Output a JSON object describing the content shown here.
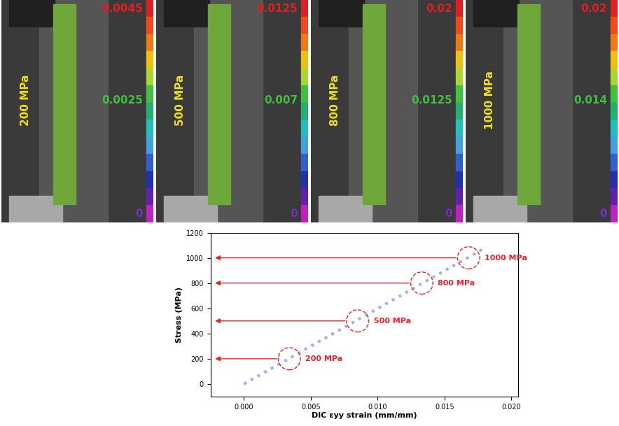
{
  "panels": [
    {
      "stress_label": "200 MPa",
      "scale_max": 0.0045,
      "scale_mid": 0.0025,
      "scale_min": 0
    },
    {
      "stress_label": "500 MPa",
      "scale_max": 0.0125,
      "scale_mid": 0.007,
      "scale_min": 0
    },
    {
      "stress_label": "800 MPa",
      "scale_max": 0.02,
      "scale_mid": 0.0125,
      "scale_min": 0
    },
    {
      "stress_label": "1000 MPa",
      "scale_max": 0.02,
      "scale_mid": 0.014,
      "scale_min": 0
    }
  ],
  "chart_data": {
    "type": "scatter",
    "x_label": "DIC εyy strain (mm/mm)",
    "y_label": "Stress (MPa)",
    "xlim": [
      -0.0025,
      0.0205
    ],
    "ylim": [
      -100,
      1200
    ],
    "xticks": [
      {
        "value": 0,
        "label": "0.000"
      },
      {
        "value": 0.005,
        "label": "0.005"
      },
      {
        "value": 0.01,
        "label": "0.010"
      },
      {
        "value": 0.015,
        "label": "0.015"
      },
      {
        "value": 0.02,
        "label": "0.020"
      }
    ],
    "yticks": [
      0,
      200,
      400,
      600,
      800,
      1000,
      1200
    ],
    "data_labels": true,
    "series": [
      {
        "type": "line",
        "color": "#a8b0ec",
        "line_style": "dotted",
        "x": [
          0,
          0.0178
        ],
        "values": [
          0,
          1065
        ]
      },
      {
        "type": "scatter",
        "color": "#e8202a",
        "marker": "circle",
        "x": [
          0.0034,
          0.0085,
          0.0133,
          0.0168
        ],
        "values": [
          200,
          500,
          800,
          1000
        ],
        "value_labels": [
          "200 MPa",
          "500 MPa",
          "800 MPa",
          "1000 MPa"
        ]
      }
    ]
  }
}
